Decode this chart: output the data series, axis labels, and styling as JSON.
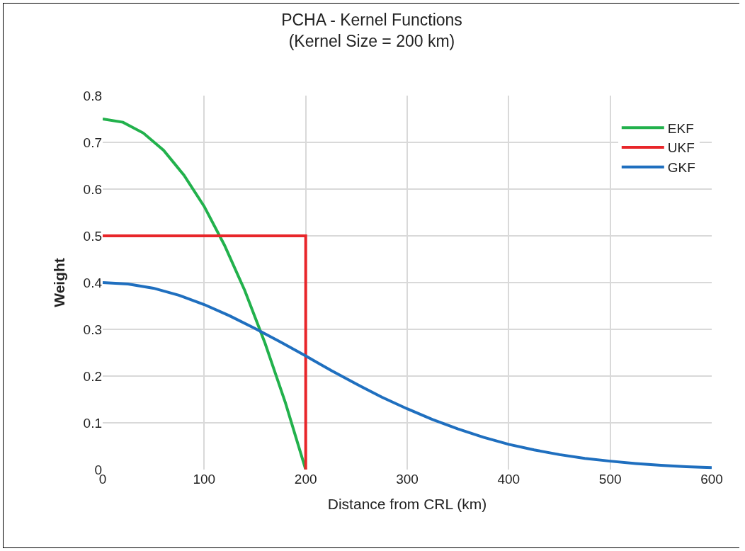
{
  "chart_data": {
    "type": "line",
    "title": "PCHA - Kernel Functions",
    "subtitle": "(Kernel Size = 200 km)",
    "xlabel": "Distance from CRL (km)",
    "ylabel": "Weight",
    "xlim": [
      0,
      600
    ],
    "xticks": [
      0,
      100,
      200,
      300,
      400,
      500,
      600
    ],
    "ylim": [
      0,
      0.8
    ],
    "yticks": [
      0,
      0.1,
      0.2,
      0.3,
      0.4,
      0.5,
      0.6,
      0.7,
      0.8
    ],
    "grid": true,
    "legend": "top right",
    "marker": "none",
    "line_style": "solid",
    "series": [
      {
        "name": "EKF",
        "color": "#22b14c",
        "x": [
          0,
          20,
          40,
          60,
          80,
          100,
          120,
          140,
          160,
          180,
          200
        ],
        "values": [
          0.75,
          0.743,
          0.72,
          0.683,
          0.63,
          0.563,
          0.48,
          0.383,
          0.27,
          0.143,
          0
        ]
      },
      {
        "name": "UKF",
        "color": "#e8262a",
        "x": [
          0,
          200,
          200
        ],
        "values": [
          0.5,
          0.5,
          0
        ]
      },
      {
        "name": "GKF",
        "color": "#1f6fbf",
        "x": [
          0,
          25,
          50,
          75,
          100,
          125,
          150,
          175,
          200,
          225,
          250,
          275,
          300,
          325,
          350,
          375,
          400,
          425,
          450,
          475,
          500,
          525,
          550,
          575,
          600
        ],
        "values": [
          0.4,
          0.397,
          0.388,
          0.373,
          0.353,
          0.329,
          0.302,
          0.273,
          0.243,
          0.212,
          0.183,
          0.155,
          0.13,
          0.107,
          0.087,
          0.069,
          0.054,
          0.042,
          0.032,
          0.024,
          0.018,
          0.013,
          0.009,
          0.006,
          0.004
        ]
      }
    ]
  }
}
